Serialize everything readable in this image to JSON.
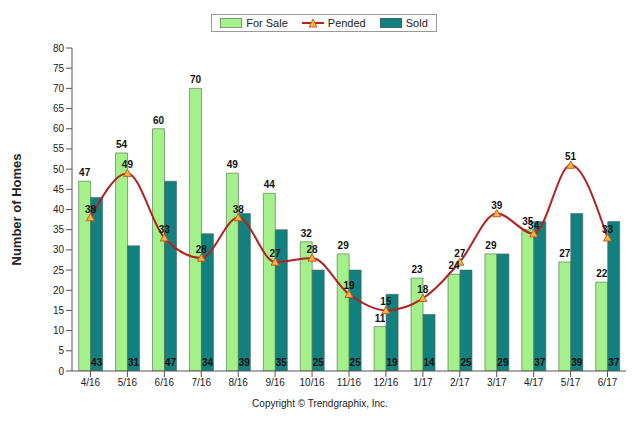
{
  "chart_data": {
    "type": "bar",
    "categories": [
      "4/16",
      "5/16",
      "6/16",
      "7/16",
      "8/16",
      "9/16",
      "10/16",
      "11/16",
      "12/16",
      "1/17",
      "2/17",
      "3/17",
      "4/17",
      "5/17",
      "6/17"
    ],
    "series": [
      {
        "name": "For Sale",
        "type": "bar",
        "color": "#a4f08a",
        "values": [
          47,
          54,
          60,
          70,
          49,
          44,
          32,
          29,
          11,
          23,
          24,
          29,
          35,
          27,
          22
        ]
      },
      {
        "name": "Sold",
        "type": "bar",
        "color": "#138080",
        "values": [
          43,
          31,
          47,
          34,
          39,
          35,
          25,
          25,
          19,
          14,
          25,
          29,
          37,
          39,
          37
        ]
      },
      {
        "name": "Pended",
        "type": "line",
        "color": "#b22222",
        "marker": "triangle",
        "line_style": "solid",
        "values": [
          38,
          49,
          33,
          28,
          38,
          27,
          28,
          19,
          15,
          18,
          27,
          39,
          34,
          51,
          33
        ]
      }
    ],
    "ylabel": "Number of Homes",
    "ylim": [
      0,
      80
    ],
    "yticks": [
      0,
      5,
      10,
      15,
      20,
      25,
      30,
      35,
      40,
      45,
      50,
      55,
      60,
      65,
      70,
      75,
      80
    ],
    "grid": false,
    "legend": "top",
    "data_labels": true,
    "annotations": [
      "Copyright © Trendgraphix, Inc."
    ]
  }
}
